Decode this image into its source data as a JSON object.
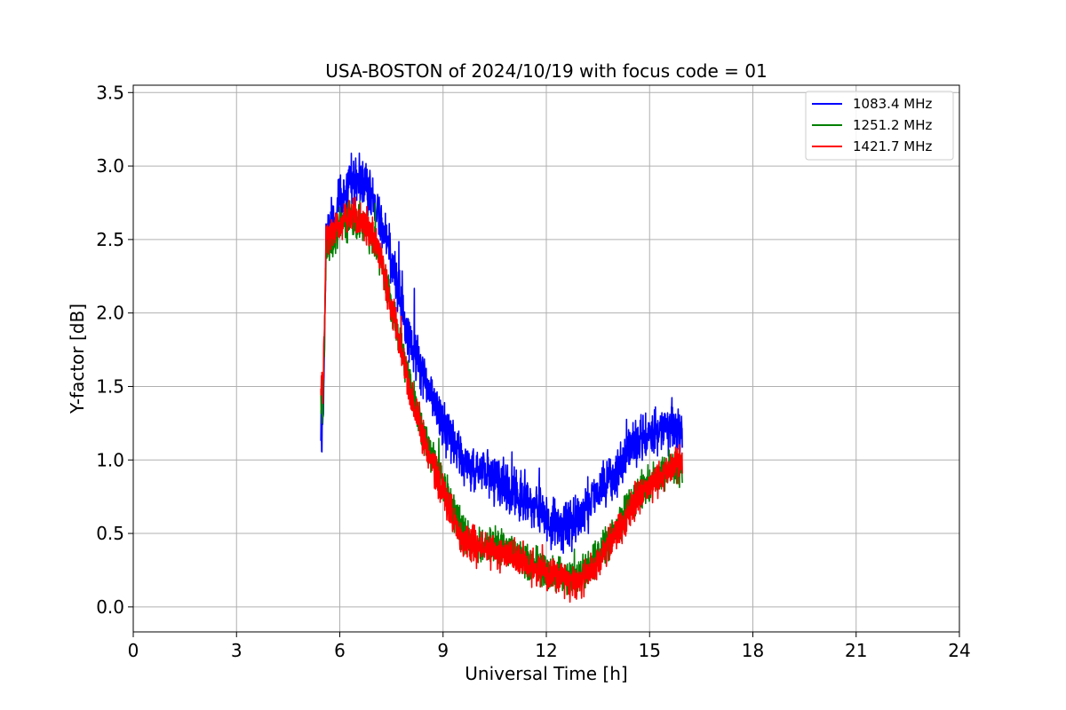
{
  "chart_data": {
    "type": "line",
    "title": "USA-BOSTON of 2024/10/19 with focus code = 01",
    "xlabel": "Universal Time [h]",
    "ylabel": "Y-factor [dB]",
    "xlim": [
      0,
      24
    ],
    "ylim": [
      -0.17,
      3.55
    ],
    "xticks": [
      "0",
      "3",
      "6",
      "9",
      "12",
      "15",
      "18",
      "21",
      "24"
    ],
    "xtick_values": [
      0,
      3,
      6,
      9,
      12,
      15,
      18,
      21,
      24
    ],
    "yticks": [
      "0.0",
      "0.5",
      "1.0",
      "1.5",
      "2.0",
      "2.5",
      "3.0",
      "3.5"
    ],
    "ytick_values": [
      0,
      0.5,
      1.0,
      1.5,
      2.0,
      2.5,
      3.0,
      3.5
    ],
    "grid": true,
    "legend_position": "top-right",
    "series": [
      {
        "name": "1083.4 MHz",
        "color": "#0000ff",
        "noise": 0.14,
        "x": [
          5.45,
          5.5,
          5.55,
          5.6,
          5.8,
          6.0,
          6.3,
          6.6,
          6.9,
          7.2,
          7.5,
          7.8,
          8.1,
          8.4,
          8.7,
          9.0,
          9.3,
          9.6,
          10.0,
          10.5,
          11.0,
          11.5,
          12.0,
          12.3,
          12.6,
          12.9,
          13.2,
          13.5,
          13.8,
          14.1,
          14.4,
          14.7,
          15.0,
          15.3,
          15.6,
          15.95
        ],
        "y": [
          1.2,
          1.25,
          1.6,
          2.5,
          2.62,
          2.78,
          2.88,
          2.92,
          2.82,
          2.62,
          2.35,
          2.05,
          1.78,
          1.6,
          1.45,
          1.25,
          1.1,
          1.0,
          0.95,
          0.88,
          0.8,
          0.72,
          0.62,
          0.57,
          0.55,
          0.6,
          0.68,
          0.78,
          0.85,
          0.95,
          1.05,
          1.12,
          1.15,
          1.2,
          1.22,
          1.2
        ]
      },
      {
        "name": "1251.2 MHz",
        "color": "#008000",
        "noise": 0.1,
        "x": [
          5.45,
          5.5,
          5.55,
          5.6,
          5.8,
          6.0,
          6.3,
          6.6,
          6.9,
          7.2,
          7.5,
          7.8,
          8.1,
          8.4,
          8.7,
          9.0,
          9.3,
          9.6,
          10.0,
          10.5,
          11.0,
          11.5,
          12.0,
          12.3,
          12.6,
          12.9,
          13.2,
          13.5,
          13.8,
          14.1,
          14.4,
          14.7,
          15.0,
          15.3,
          15.6,
          15.95
        ],
        "y": [
          1.45,
          1.35,
          1.7,
          2.4,
          2.5,
          2.6,
          2.62,
          2.62,
          2.52,
          2.35,
          2.05,
          1.75,
          1.45,
          1.2,
          1.0,
          0.85,
          0.65,
          0.5,
          0.42,
          0.42,
          0.38,
          0.3,
          0.25,
          0.22,
          0.2,
          0.18,
          0.25,
          0.35,
          0.45,
          0.55,
          0.68,
          0.78,
          0.85,
          0.9,
          0.95,
          0.95
        ]
      },
      {
        "name": "1421.7 MHz",
        "color": "#ff0000",
        "noise": 0.1,
        "x": [
          5.45,
          5.5,
          5.55,
          5.6,
          5.8,
          6.0,
          6.3,
          6.6,
          6.9,
          7.2,
          7.5,
          7.8,
          8.1,
          8.4,
          8.7,
          9.0,
          9.3,
          9.6,
          10.0,
          10.5,
          11.0,
          11.5,
          12.0,
          12.3,
          12.6,
          12.9,
          13.2,
          13.5,
          13.8,
          14.1,
          14.4,
          14.7,
          15.0,
          15.3,
          15.6,
          15.95
        ],
        "y": [
          1.55,
          1.45,
          1.8,
          2.5,
          2.55,
          2.62,
          2.68,
          2.65,
          2.55,
          2.35,
          2.05,
          1.72,
          1.42,
          1.15,
          0.95,
          0.78,
          0.6,
          0.45,
          0.4,
          0.38,
          0.35,
          0.28,
          0.22,
          0.2,
          0.18,
          0.17,
          0.22,
          0.32,
          0.42,
          0.52,
          0.65,
          0.75,
          0.82,
          0.88,
          0.95,
          1.0
        ]
      }
    ]
  }
}
